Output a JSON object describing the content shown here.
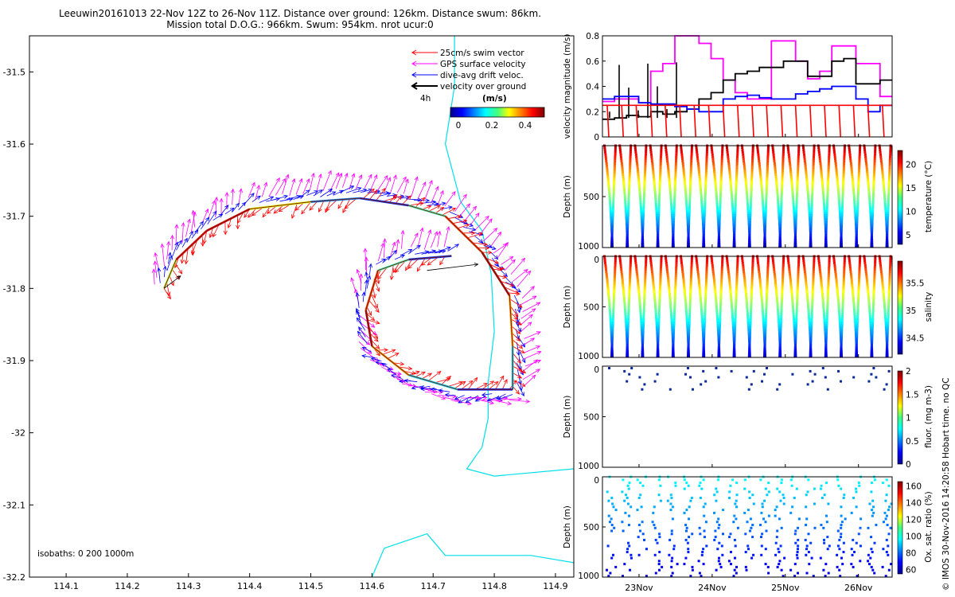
{
  "title": {
    "line1": "Leeuwin20161013 22-Nov 12Z to 26-Nov 11Z. Distance over ground: 126km. Distance swum: 86km.",
    "line2": "Mission total D.O.G.: 966km. Swum: 954km. nrot ucur:0"
  },
  "watermark": "© IMOS 30-Nov-2016 14:20:58 Hobart time. no QC",
  "map": {
    "x_ticks": [
      "114.1",
      "114.2",
      "114.3",
      "114.4",
      "114.5",
      "114.6",
      "114.7",
      "114.8",
      "114.9"
    ],
    "y_ticks": [
      "-31.5",
      "-31.6",
      "-31.7",
      "-31.8",
      "-31.9",
      "-32",
      "-32.1",
      "-32.2"
    ],
    "xlim": [
      114.04,
      114.93
    ],
    "ylim": [
      -32.2,
      -31.45
    ],
    "legend": [
      {
        "label": "25cm/s swim vector",
        "color": "#ff0000"
      },
      {
        "label": "GPS surface velocity",
        "color": "#ff00ff"
      },
      {
        "label": "dive-avg drift veloc.",
        "color": "#0000ff"
      },
      {
        "label": "velocity over ground",
        "color": "#000000"
      }
    ],
    "legend_time": "4h",
    "colorbar_label": "(m/s)",
    "colorbar_ticks": [
      "0",
      "0.2",
      "0.4"
    ],
    "isobaths_label": "isobaths: 0   200  1000m"
  },
  "chart_data": [
    {
      "type": "line",
      "ylabel": "velocity magnitude (m/s)",
      "ylim": [
        0,
        0.8
      ],
      "y_ticks": [
        "0",
        "0.2",
        "0.4",
        "0.6",
        "0.8"
      ],
      "x_ticks": [
        "23Nov",
        "24Nov",
        "25Nov",
        "26Nov"
      ],
      "series": [
        {
          "color": "#ff00ff",
          "values": [
            0.28,
            0.3,
            0.3,
            0.27,
            0.52,
            0.58,
            0.8,
            0.8,
            0.74,
            0.62,
            0.45,
            0.35,
            0.3,
            0.3,
            0.76,
            0.76,
            0.6,
            0.46,
            0.52,
            0.72,
            0.72,
            0.58,
            0.58,
            0.32
          ]
        },
        {
          "color": "#000000",
          "values": [
            0.14,
            0.15,
            0.17,
            0.16,
            0.2,
            0.18,
            0.2,
            0.22,
            0.3,
            0.35,
            0.45,
            0.5,
            0.52,
            0.55,
            0.55,
            0.6,
            0.6,
            0.48,
            0.48,
            0.6,
            0.62,
            0.42,
            0.42,
            0.45
          ]
        },
        {
          "color": "#0000ff",
          "values": [
            0.3,
            0.32,
            0.32,
            0.27,
            0.26,
            0.26,
            0.24,
            0.22,
            0.2,
            0.2,
            0.3,
            0.32,
            0.33,
            0.31,
            0.3,
            0.3,
            0.34,
            0.36,
            0.38,
            0.4,
            0.4,
            0.3,
            0.2,
            0.25
          ]
        },
        {
          "color": "#ff0000",
          "values": [
            0.25,
            0.25,
            0.25,
            0.25,
            0.25,
            0.25,
            0.25,
            0.25,
            0.25,
            0.25,
            0.25,
            0.25,
            0.25,
            0.25,
            0.25,
            0.25,
            0.25,
            0.25,
            0.25,
            0.25,
            0.25,
            0.25,
            0.25,
            0.25
          ]
        }
      ]
    },
    {
      "type": "scatter",
      "ylabel": "Depth (m)",
      "clabel": "temperature (°C)",
      "y_ticks": [
        "500",
        "1000"
      ],
      "c_ticks": [
        "20",
        "15",
        "10",
        "5"
      ],
      "crange": [
        3,
        23
      ]
    },
    {
      "type": "scatter",
      "ylabel": "Depth (m)",
      "clabel": "salinity",
      "y_ticks": [
        "0",
        "500",
        "1000"
      ],
      "c_ticks": [
        "35.5",
        "35",
        "34.5"
      ],
      "crange": [
        34.2,
        35.9
      ]
    },
    {
      "type": "scatter",
      "ylabel": "Depth (m)",
      "clabel": "fluor. (mg m-3)",
      "y_ticks": [
        "0",
        "500",
        "1000"
      ],
      "c_ticks": [
        "2",
        "1.5",
        "1",
        "0.5",
        "0"
      ],
      "crange": [
        0,
        2
      ]
    },
    {
      "type": "scatter",
      "ylabel": "Depth (m)",
      "clabel": "Ox. sat. ratio (%)",
      "y_ticks": [
        "0",
        "500",
        "1000"
      ],
      "c_ticks": [
        "160",
        "140",
        "120",
        "100",
        "80",
        "60"
      ],
      "crange": [
        55,
        165
      ]
    }
  ]
}
